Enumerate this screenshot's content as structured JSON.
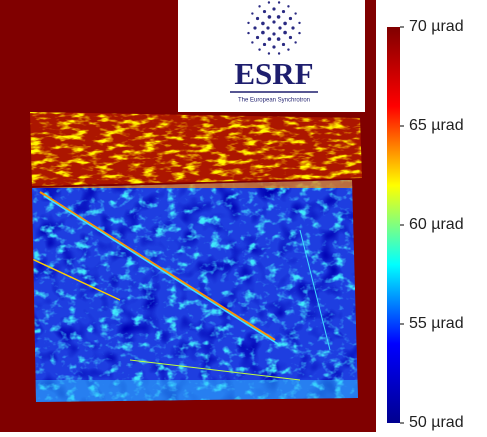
{
  "chart_data": {
    "type": "heatmap",
    "colorbar": {
      "colormap": "jet",
      "zlim": [
        50,
        70
      ],
      "ticks": [
        {
          "value": 50,
          "label": "50 µrad"
        },
        {
          "value": 55,
          "label": "55 µrad"
        },
        {
          "value": 60,
          "label": "60 µrad"
        },
        {
          "value": 65,
          "label": "65 µrad"
        },
        {
          "value": 70,
          "label": "70 µrad"
        }
      ]
    }
  },
  "logo": {
    "title": "ESRF",
    "subtitle": "The European Synchrotron"
  }
}
